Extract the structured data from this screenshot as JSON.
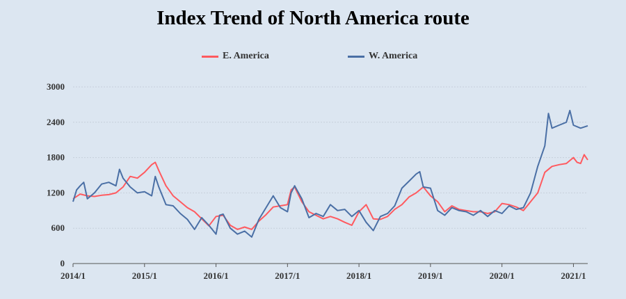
{
  "chart_data": {
    "type": "line",
    "title": "Index Trend of North America route",
    "xlabel": "",
    "ylabel": "",
    "ylim": [
      0,
      3000
    ],
    "yticks": [
      0,
      600,
      1200,
      1800,
      2400,
      3000
    ],
    "xticks": [
      "2014/1",
      "2015/1",
      "2016/1",
      "2017/1",
      "2018/1",
      "2019/1",
      "2020/1",
      "2021/1"
    ],
    "xlim": [
      2014.0,
      2021.2
    ],
    "grid": "horizontal",
    "legend": "top-center",
    "series": [
      {
        "name": "E. America",
        "color": "#ff5a5f",
        "points": [
          [
            2014.0,
            1100
          ],
          [
            2014.1,
            1180
          ],
          [
            2014.2,
            1150
          ],
          [
            2014.3,
            1140
          ],
          [
            2014.4,
            1160
          ],
          [
            2014.5,
            1170
          ],
          [
            2014.6,
            1200
          ],
          [
            2014.7,
            1300
          ],
          [
            2014.8,
            1480
          ],
          [
            2014.9,
            1450
          ],
          [
            2015.0,
            1550
          ],
          [
            2015.1,
            1680
          ],
          [
            2015.15,
            1720
          ],
          [
            2015.2,
            1580
          ],
          [
            2015.3,
            1320
          ],
          [
            2015.4,
            1150
          ],
          [
            2015.5,
            1050
          ],
          [
            2015.6,
            950
          ],
          [
            2015.7,
            880
          ],
          [
            2015.8,
            760
          ],
          [
            2015.9,
            640
          ],
          [
            2016.0,
            800
          ],
          [
            2016.1,
            820
          ],
          [
            2016.2,
            650
          ],
          [
            2016.3,
            580
          ],
          [
            2016.4,
            620
          ],
          [
            2016.5,
            580
          ],
          [
            2016.6,
            720
          ],
          [
            2016.7,
            830
          ],
          [
            2016.8,
            960
          ],
          [
            2016.9,
            980
          ],
          [
            2017.0,
            1000
          ],
          [
            2017.05,
            1250
          ],
          [
            2017.1,
            1300
          ],
          [
            2017.2,
            1050
          ],
          [
            2017.3,
            880
          ],
          [
            2017.4,
            820
          ],
          [
            2017.5,
            760
          ],
          [
            2017.6,
            800
          ],
          [
            2017.7,
            760
          ],
          [
            2017.8,
            700
          ],
          [
            2017.9,
            650
          ],
          [
            2018.0,
            880
          ],
          [
            2018.1,
            1000
          ],
          [
            2018.2,
            760
          ],
          [
            2018.3,
            750
          ],
          [
            2018.4,
            800
          ],
          [
            2018.5,
            920
          ],
          [
            2018.6,
            1000
          ],
          [
            2018.7,
            1130
          ],
          [
            2018.8,
            1200
          ],
          [
            2018.9,
            1300
          ],
          [
            2019.0,
            1150
          ],
          [
            2019.1,
            1050
          ],
          [
            2019.2,
            880
          ],
          [
            2019.3,
            980
          ],
          [
            2019.4,
            920
          ],
          [
            2019.5,
            900
          ],
          [
            2019.6,
            880
          ],
          [
            2019.7,
            880
          ],
          [
            2019.8,
            850
          ],
          [
            2019.9,
            880
          ],
          [
            2020.0,
            1020
          ],
          [
            2020.1,
            1000
          ],
          [
            2020.2,
            960
          ],
          [
            2020.3,
            900
          ],
          [
            2020.4,
            1050
          ],
          [
            2020.5,
            1200
          ],
          [
            2020.6,
            1550
          ],
          [
            2020.7,
            1650
          ],
          [
            2020.8,
            1680
          ],
          [
            2020.9,
            1700
          ],
          [
            2021.0,
            1800
          ],
          [
            2021.05,
            1720
          ],
          [
            2021.1,
            1700
          ],
          [
            2021.15,
            1850
          ],
          [
            2021.2,
            1760
          ]
        ]
      },
      {
        "name": "W. America",
        "color": "#4a6fa5",
        "points": [
          [
            2014.0,
            1050
          ],
          [
            2014.05,
            1250
          ],
          [
            2014.1,
            1320
          ],
          [
            2014.15,
            1380
          ],
          [
            2014.2,
            1100
          ],
          [
            2014.3,
            1200
          ],
          [
            2014.4,
            1350
          ],
          [
            2014.5,
            1380
          ],
          [
            2014.6,
            1320
          ],
          [
            2014.65,
            1600
          ],
          [
            2014.7,
            1450
          ],
          [
            2014.8,
            1300
          ],
          [
            2014.9,
            1200
          ],
          [
            2015.0,
            1220
          ],
          [
            2015.1,
            1150
          ],
          [
            2015.15,
            1480
          ],
          [
            2015.2,
            1300
          ],
          [
            2015.3,
            1000
          ],
          [
            2015.4,
            980
          ],
          [
            2015.5,
            850
          ],
          [
            2015.6,
            750
          ],
          [
            2015.7,
            580
          ],
          [
            2015.8,
            780
          ],
          [
            2015.9,
            650
          ],
          [
            2016.0,
            500
          ],
          [
            2016.05,
            820
          ],
          [
            2016.1,
            840
          ],
          [
            2016.2,
            600
          ],
          [
            2016.3,
            500
          ],
          [
            2016.4,
            550
          ],
          [
            2016.5,
            450
          ],
          [
            2016.6,
            750
          ],
          [
            2016.7,
            950
          ],
          [
            2016.8,
            1150
          ],
          [
            2016.9,
            950
          ],
          [
            2017.0,
            880
          ],
          [
            2017.05,
            1200
          ],
          [
            2017.1,
            1320
          ],
          [
            2017.2,
            1100
          ],
          [
            2017.3,
            780
          ],
          [
            2017.4,
            850
          ],
          [
            2017.5,
            800
          ],
          [
            2017.6,
            1000
          ],
          [
            2017.7,
            900
          ],
          [
            2017.8,
            920
          ],
          [
            2017.9,
            800
          ],
          [
            2018.0,
            900
          ],
          [
            2018.1,
            700
          ],
          [
            2018.2,
            560
          ],
          [
            2018.3,
            800
          ],
          [
            2018.4,
            850
          ],
          [
            2018.5,
            980
          ],
          [
            2018.6,
            1280
          ],
          [
            2018.7,
            1400
          ],
          [
            2018.8,
            1520
          ],
          [
            2018.85,
            1560
          ],
          [
            2018.9,
            1300
          ],
          [
            2019.0,
            1280
          ],
          [
            2019.1,
            900
          ],
          [
            2019.2,
            820
          ],
          [
            2019.3,
            950
          ],
          [
            2019.4,
            900
          ],
          [
            2019.5,
            880
          ],
          [
            2019.6,
            820
          ],
          [
            2019.7,
            900
          ],
          [
            2019.8,
            800
          ],
          [
            2019.9,
            900
          ],
          [
            2020.0,
            850
          ],
          [
            2020.1,
            980
          ],
          [
            2020.2,
            920
          ],
          [
            2020.3,
            950
          ],
          [
            2020.4,
            1200
          ],
          [
            2020.5,
            1650
          ],
          [
            2020.6,
            2000
          ],
          [
            2020.65,
            2550
          ],
          [
            2020.7,
            2300
          ],
          [
            2020.8,
            2350
          ],
          [
            2020.9,
            2400
          ],
          [
            2020.95,
            2600
          ],
          [
            2021.0,
            2350
          ],
          [
            2021.1,
            2300
          ],
          [
            2021.2,
            2340
          ]
        ]
      }
    ]
  }
}
